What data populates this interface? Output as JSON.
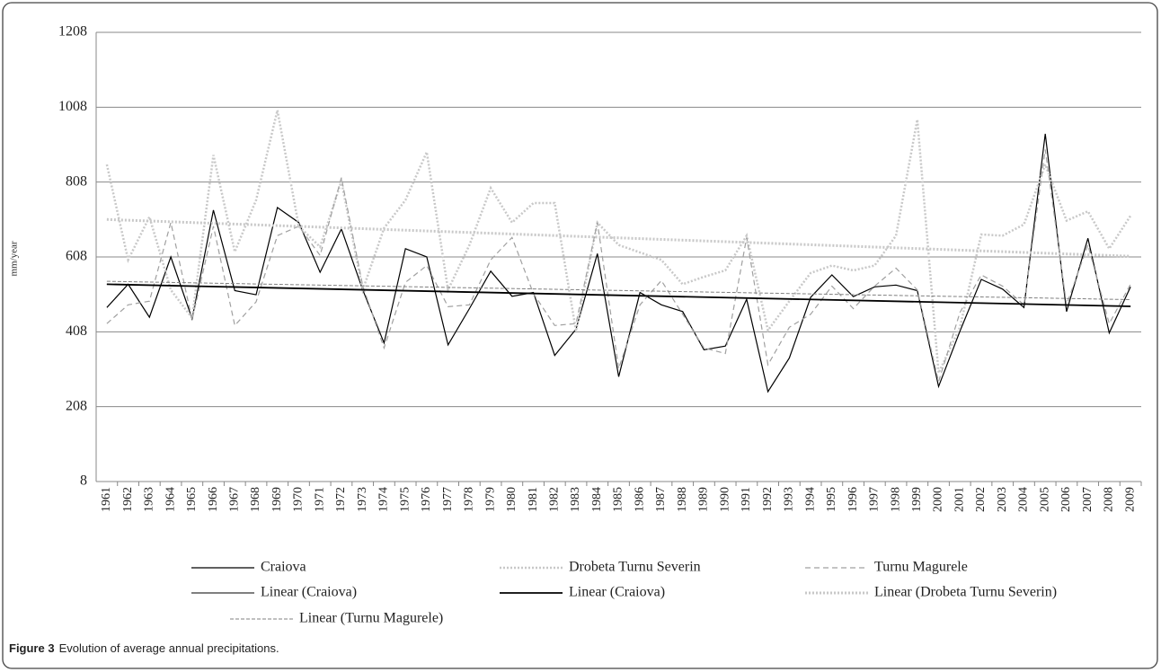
{
  "chart_data": {
    "type": "line",
    "y_label": "mm/year",
    "caption": {
      "label": "Figure 3",
      "text": "Evolution of average annual precipitations."
    },
    "categories": [
      1961,
      1962,
      1963,
      1964,
      1965,
      1966,
      1967,
      1968,
      1969,
      1970,
      1971,
      1972,
      1973,
      1974,
      1975,
      1976,
      1977,
      1978,
      1979,
      1980,
      1981,
      1982,
      1983,
      1984,
      1985,
      1986,
      1987,
      1988,
      1989,
      1990,
      1991,
      1992,
      1993,
      1994,
      1995,
      1996,
      1997,
      1998,
      1999,
      2000,
      2001,
      2002,
      2003,
      2004,
      2005,
      2006,
      2007,
      2008,
      2009
    ],
    "ylim": [
      8,
      1208
    ],
    "yticks": [
      8,
      208,
      408,
      608,
      808,
      1008,
      1208
    ],
    "grid": true,
    "series": [
      {
        "name": "Craiova",
        "color": "#000000",
        "dash": "solid",
        "width": 1.2,
        "values": [
          473,
          535,
          447,
          608,
          443,
          733,
          518,
          507,
          740,
          700,
          567,
          683,
          520,
          378,
          630,
          608,
          373,
          470,
          570,
          503,
          513,
          345,
          415,
          617,
          288,
          513,
          480,
          462,
          360,
          370,
          495,
          248,
          338,
          500,
          560,
          502,
          528,
          533,
          518,
          262,
          410,
          548,
          522,
          473,
          937,
          462,
          658,
          405,
          528
        ]
      },
      {
        "name": "Drobeta Turnu Severin",
        "color": "#c8c8c8",
        "dash": "dotted",
        "width": 2.5,
        "values": [
          855,
          600,
          715,
          520,
          445,
          880,
          622,
          760,
          1000,
          690,
          635,
          810,
          520,
          685,
          760,
          888,
          520,
          640,
          792,
          700,
          752,
          752,
          410,
          700,
          640,
          620,
          600,
          535,
          555,
          572,
          665,
          412,
          490,
          565,
          585,
          572,
          585,
          665,
          975,
          298,
          420,
          668,
          665,
          695,
          855,
          705,
          730,
          630,
          718
        ]
      },
      {
        "name": "Turnu Magurele",
        "color": "#a0a0a0",
        "dash": "dashed",
        "width": 1.2,
        "values": [
          430,
          480,
          490,
          700,
          440,
          690,
          425,
          488,
          665,
          690,
          612,
          820,
          530,
          365,
          540,
          585,
          475,
          480,
          600,
          660,
          510,
          425,
          430,
          700,
          310,
          480,
          545,
          455,
          365,
          350,
          660,
          320,
          420,
          455,
          530,
          470,
          530,
          578,
          520,
          275,
          460,
          560,
          530,
          480,
          895,
          480,
          640,
          430,
          535
        ]
      },
      {
        "name": "Linear (Craiova)",
        "color": "#000000",
        "dash": "solid",
        "width": 1,
        "x": [
          1961,
          2009
        ],
        "values": [
          535,
          476
        ]
      },
      {
        "name": "Linear (Craiova)",
        "color": "#000000",
        "dash": "solid",
        "width": 1.8,
        "x": [
          1961,
          2009
        ],
        "values": [
          535,
          476
        ]
      },
      {
        "name": "Linear (Drobeta Turnu Severin)",
        "color": "#c8c8c8",
        "dash": "dotted",
        "width": 3,
        "x": [
          1961,
          2009
        ],
        "values": [
          708,
          610
        ]
      },
      {
        "name": "Linear (Turnu Magurele)",
        "color": "#808080",
        "dash": "dashed-fine",
        "width": 1,
        "x": [
          1961,
          2009
        ],
        "values": [
          543,
          494
        ]
      }
    ]
  }
}
